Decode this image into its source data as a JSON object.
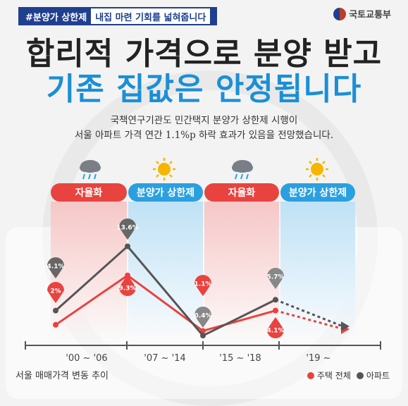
{
  "tag": {
    "highlight": "#분양가 상한제",
    "rest": "내집 마련 기회를 넓혀줍니다"
  },
  "ministry": "국토교통부",
  "headline": {
    "line1": "합리적 가격으로 분양 받고",
    "line2": "기존 집값은 안정됩니다"
  },
  "description": {
    "line1": "국책연구기관도 민간택지 분양가 상한제 시행이",
    "line2": "서울 아파트 가격 연간 1.1%p 하락 효과가 있음을 전망했습니다."
  },
  "periods": [
    {
      "label": "자율화",
      "policy": "red",
      "weather": "rain-cloud-icon"
    },
    {
      "label": "분양가 상한제",
      "policy": "blue",
      "weather": "sun-icon"
    },
    {
      "label": "자율화",
      "policy": "red",
      "weather": "rain-cloud-icon"
    },
    {
      "label": "분양가 상한제",
      "policy": "blue",
      "weather": "sun-icon"
    }
  ],
  "chart_data": {
    "type": "line",
    "title": "",
    "caption": "서울 매매가격 변동 추이",
    "x_labels": [
      "'00 ~ '06",
      "'07 ~ '14",
      "'15 ~ '18",
      "'19 ~"
    ],
    "series": [
      {
        "name": "주택 전체",
        "color": "#e8433f",
        "values": [
          2,
          9.3,
          1.1,
          4.1
        ],
        "labels": [
          "2%",
          "9.3%",
          "1.1%",
          "4.1%"
        ]
      },
      {
        "name": "아파트",
        "color": "#555555",
        "values": [
          4.1,
          13.6,
          0.4,
          5.7
        ],
        "labels": [
          "4.1%",
          "13.6%",
          "0.4%",
          "5.7%"
        ]
      }
    ],
    "legend_position": "bottom-right",
    "colors": {
      "red": "#e8433f",
      "gray": "#555555",
      "blue": "#2aa0e0"
    }
  }
}
